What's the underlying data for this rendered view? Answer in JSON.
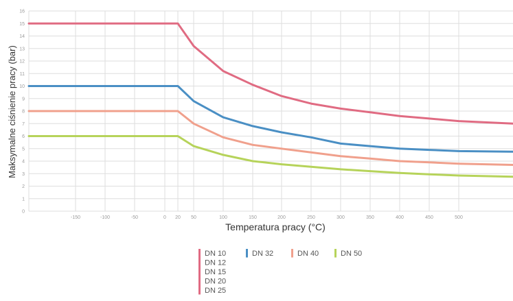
{
  "chart_data": {
    "type": "line",
    "xlabel": "Temperatura pracy (°C)",
    "ylabel": "Maksymalne ciśnienie pracy (bar)",
    "x_ticks": [
      "-150",
      "-100",
      "-50",
      "0",
      "20",
      "50",
      "100",
      "150",
      "200",
      "250",
      "300",
      "350",
      "400",
      "450",
      "500"
    ],
    "y_ticks": [
      0,
      1,
      2,
      3,
      4,
      5,
      6,
      7,
      8,
      9,
      10,
      11,
      12,
      13,
      14,
      15,
      16
    ],
    "ylim": [
      0,
      16
    ],
    "grid": true,
    "legend_position": "bottom",
    "series": [
      {
        "name": "DN 10\nDN 12\nDN 15\nDN 20\nDN 25",
        "color": "#e06b82",
        "legend_lines": [
          "DN 10",
          "DN 12",
          "DN 15",
          "DN 20",
          "DN 25"
        ],
        "x": [
          -200,
          20,
          50,
          100,
          150,
          200,
          250,
          300,
          350,
          400,
          450,
          500,
          550
        ],
        "y": [
          15,
          15,
          13.2,
          11.2,
          10.1,
          9.2,
          8.6,
          8.2,
          7.9,
          7.6,
          7.4,
          7.2,
          7.0
        ]
      },
      {
        "name": "DN 32",
        "color": "#4a8fc4",
        "legend_lines": [
          "DN 32"
        ],
        "x": [
          -200,
          20,
          50,
          100,
          150,
          200,
          250,
          300,
          350,
          400,
          450,
          500,
          550
        ],
        "y": [
          10,
          10,
          8.8,
          7.5,
          6.8,
          6.3,
          5.9,
          5.4,
          5.2,
          5.0,
          4.9,
          4.8,
          4.75
        ]
      },
      {
        "name": "DN 40",
        "color": "#f0a08c",
        "legend_lines": [
          "DN 40"
        ],
        "x": [
          -200,
          20,
          50,
          100,
          150,
          200,
          250,
          300,
          350,
          400,
          450,
          500,
          550
        ],
        "y": [
          8,
          8,
          7.0,
          5.9,
          5.3,
          5.0,
          4.7,
          4.4,
          4.2,
          4.0,
          3.9,
          3.8,
          3.7
        ]
      },
      {
        "name": "DN 50",
        "color": "#b6d35a",
        "legend_lines": [
          "DN 50"
        ],
        "x": [
          -200,
          20,
          50,
          100,
          150,
          200,
          250,
          300,
          350,
          400,
          450,
          500,
          550
        ],
        "y": [
          6,
          6,
          5.2,
          4.5,
          4.0,
          3.75,
          3.55,
          3.35,
          3.2,
          3.05,
          2.95,
          2.85,
          2.75
        ]
      }
    ]
  }
}
